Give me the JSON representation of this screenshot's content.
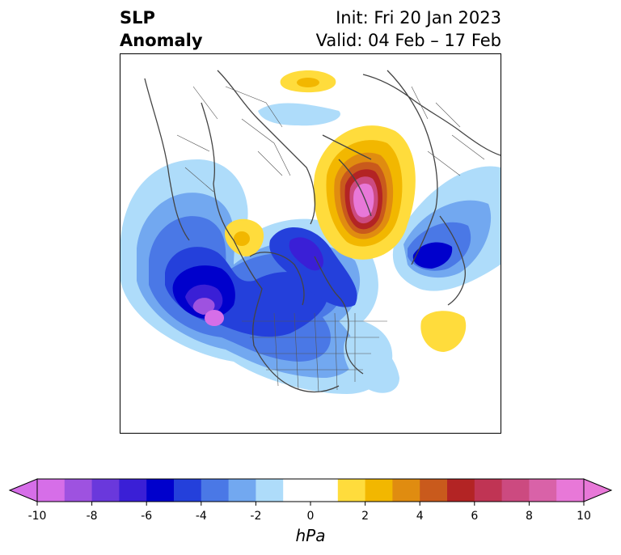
{
  "title": {
    "left_line1": "SLP",
    "left_line2": "Anomaly",
    "right_line1": "Init: Fri 20 Jan 2023",
    "right_line2": "Valid: 04 Feb – 17 Feb"
  },
  "colorbar": {
    "unit": "hPa",
    "tick_labels": [
      "-10",
      "-8",
      "-6",
      "-4",
      "-2",
      "0",
      "2",
      "4",
      "6",
      "8",
      "10"
    ],
    "min": -10,
    "max": 10,
    "extend": "both",
    "colors": [
      "#d66ee8",
      "#9e52e0",
      "#6a38dc",
      "#3a1fd6",
      "#0000cc",
      "#2440db",
      "#4a78e6",
      "#72a8f0",
      "#aedcfa",
      "#ffffff",
      "#ffdc3c",
      "#f2b700",
      "#e08c10",
      "#c95a1c",
      "#b32424",
      "#c03454",
      "#cc4a80",
      "#d962a8",
      "#e878d8"
    ]
  },
  "legend": {
    "position": "bottom"
  }
}
